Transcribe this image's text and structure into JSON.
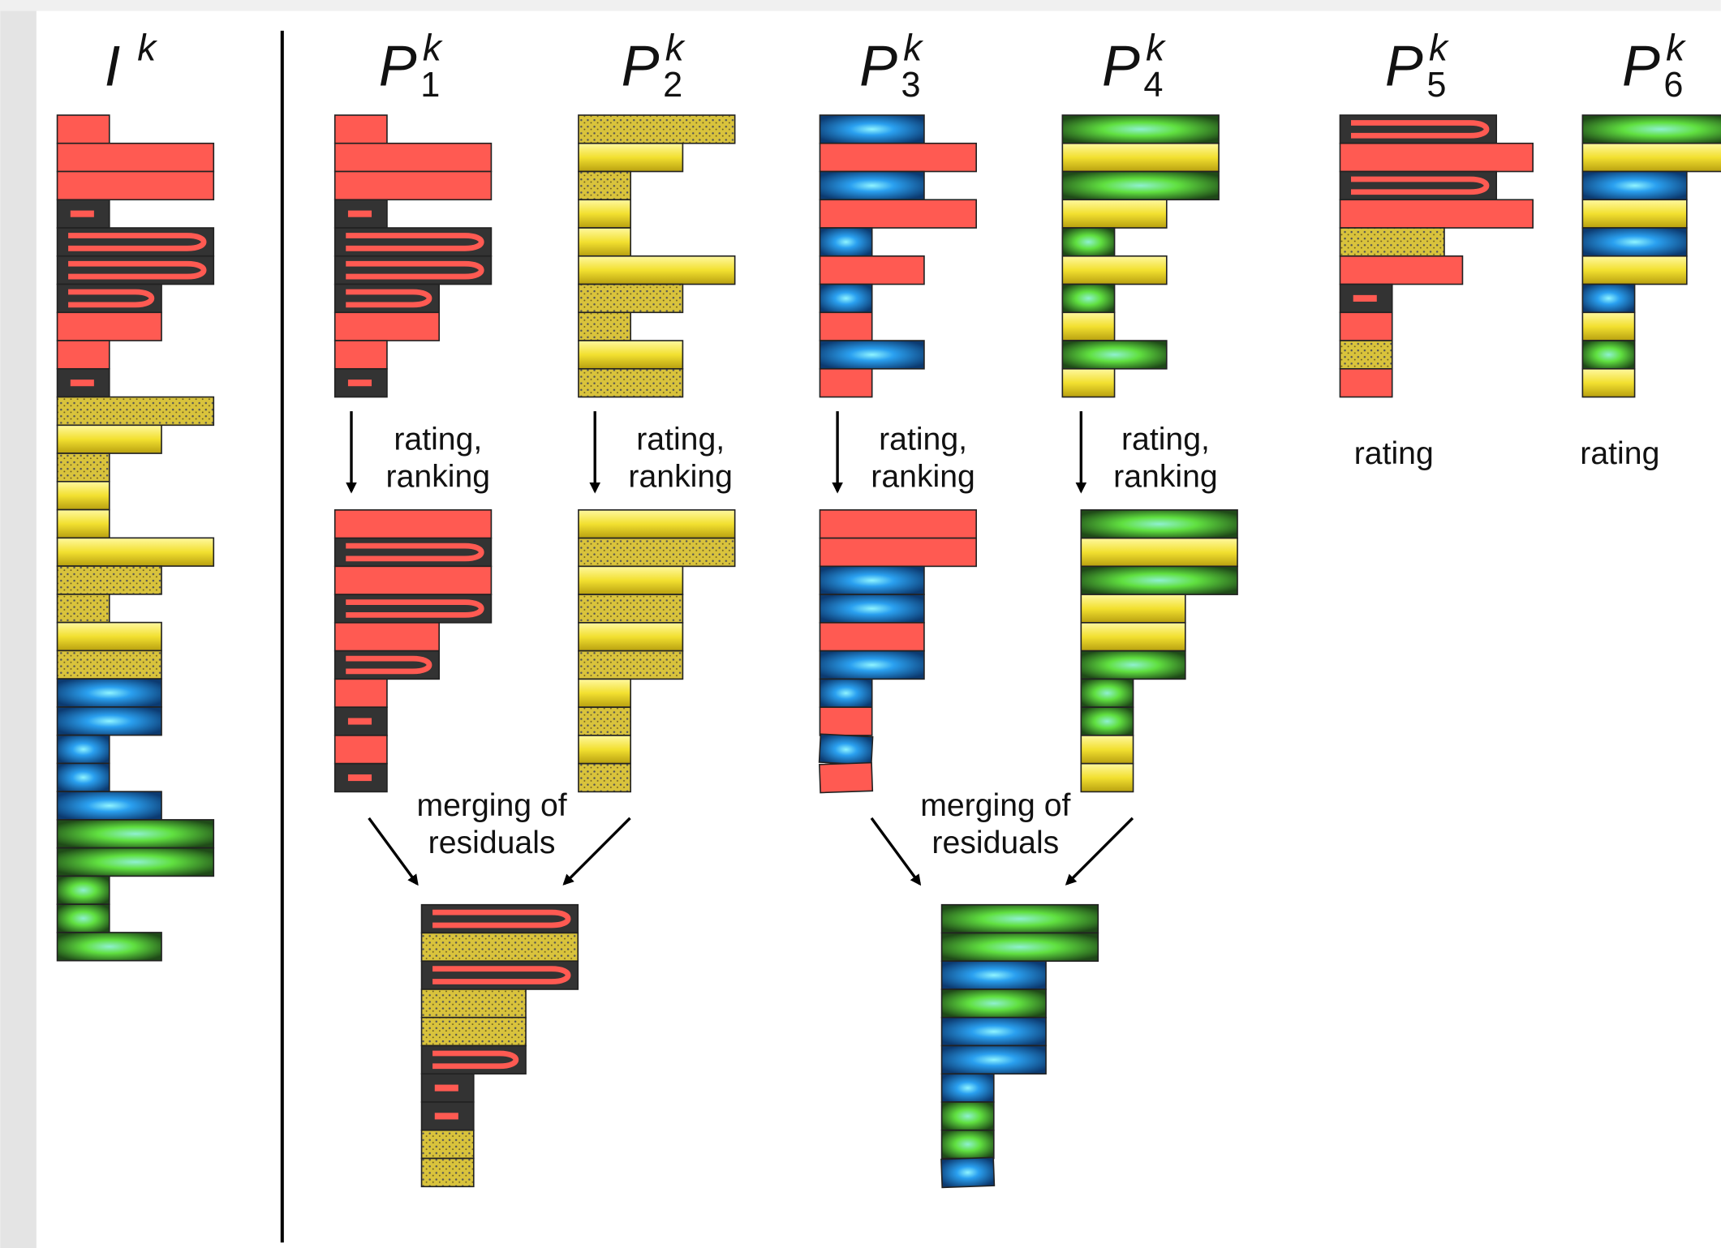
{
  "columns": [
    {
      "base": "I",
      "sup": "k"
    },
    {
      "base": "P",
      "sub": "1",
      "sup": "k"
    },
    {
      "base": "P",
      "sub": "2",
      "sup": "k"
    },
    {
      "base": "P",
      "sub": "3",
      "sup": "k"
    },
    {
      "base": "P",
      "sub": "4",
      "sup": "k"
    },
    {
      "base": "P",
      "sub": "5",
      "sup": "k"
    },
    {
      "base": "P",
      "sub": "6",
      "sup": "k"
    }
  ],
  "steps": [
    {
      "lines": [
        "rating,",
        "ranking"
      ]
    },
    {
      "lines": [
        "rating,",
        "ranking"
      ]
    },
    {
      "lines": [
        "rating,",
        "ranking"
      ]
    },
    {
      "lines": [
        "rating,",
        "ranking"
      ]
    },
    {
      "lines": [
        "rating"
      ]
    },
    {
      "lines": [
        "rating"
      ]
    }
  ],
  "merges": [
    {
      "lines": [
        "merging of",
        "residuals"
      ]
    },
    {
      "lines": [
        "merging of",
        "residuals"
      ]
    }
  ]
}
